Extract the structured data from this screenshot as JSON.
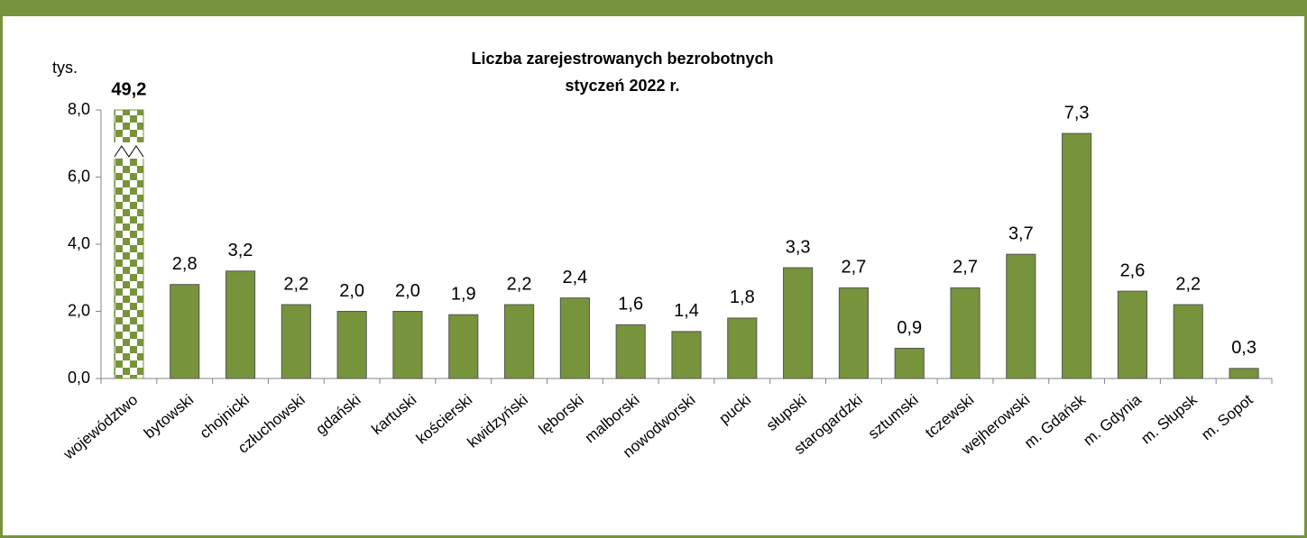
{
  "chart_data": {
    "type": "bar",
    "title": "Liczba zarejestrowanych bezrobotnych",
    "subtitle": "styczeń 2022 r.",
    "y_label": "tys.",
    "categories": [
      "województwo",
      "bytowski",
      "chojnicki",
      "człuchowski",
      "gdański",
      "kartuski",
      "kościerski",
      "kwidzyński",
      "lęborski",
      "malborski",
      "nowodworski",
      "pucki",
      "słupski",
      "starogardzki",
      "sztumski",
      "tczewski",
      "wejherowski",
      "m. Gdańsk",
      "m. Gdynia",
      "m. Słupsk",
      "m. Sopot"
    ],
    "values": [
      49.2,
      2.8,
      3.2,
      2.2,
      2.0,
      2.0,
      1.9,
      2.2,
      2.4,
      1.6,
      1.4,
      1.8,
      3.3,
      2.7,
      0.9,
      2.7,
      3.7,
      7.3,
      2.6,
      2.2,
      0.3
    ],
    "value_labels": [
      "49,2",
      "2,8",
      "3,2",
      "2,2",
      "2,0",
      "2,0",
      "1,9",
      "2,2",
      "2,4",
      "1,6",
      "1,4",
      "1,8",
      "3,3",
      "2,7",
      "0,9",
      "2,7",
      "3,7",
      "7,3",
      "2,6",
      "2,2",
      "0,3"
    ],
    "color": "#77933c",
    "ylim": [
      0,
      8
    ],
    "yticks": [
      {
        "value": 0,
        "label": "0,0"
      },
      {
        "value": 2,
        "label": "2,0"
      },
      {
        "value": 4,
        "label": "4,0"
      },
      {
        "value": 6,
        "label": "6,0"
      },
      {
        "value": 8,
        "label": "8,0"
      }
    ],
    "grid": false
  }
}
